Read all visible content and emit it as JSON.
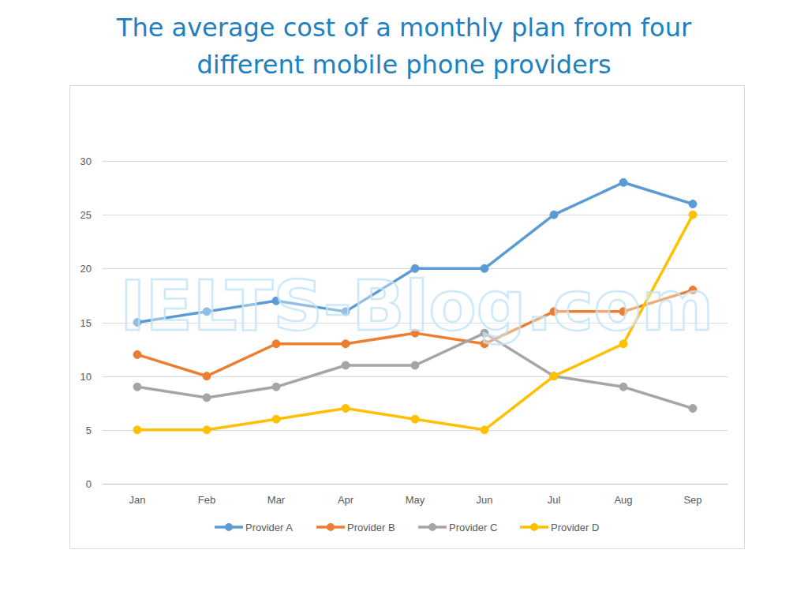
{
  "chart_data": {
    "type": "line",
    "title": "The average cost of a monthly plan from four different mobile phone providers",
    "annotations": [
      "IELTS-Blog.com"
    ],
    "categories": [
      "Jan",
      "Feb",
      "Mar",
      "Apr",
      "May",
      "Jun",
      "Jul",
      "Aug",
      "Sep"
    ],
    "series": [
      {
        "name": "Provider A",
        "color": "#5b9bd5",
        "values": [
          15,
          16,
          17,
          16,
          20,
          20,
          25,
          28,
          26
        ]
      },
      {
        "name": "Provider B",
        "color": "#ed7d31",
        "values": [
          12,
          10,
          13,
          13,
          14,
          13,
          16,
          16,
          18
        ]
      },
      {
        "name": "Provider C",
        "color": "#a5a5a5",
        "values": [
          9,
          8,
          9,
          11,
          11,
          14,
          10,
          9,
          7
        ]
      },
      {
        "name": "Provider D",
        "color": "#ffc000",
        "values": [
          5,
          5,
          6,
          7,
          6,
          5,
          10,
          13,
          25
        ]
      }
    ],
    "ylim": [
      0,
      30
    ],
    "yticks": [
      0,
      5,
      10,
      15,
      20,
      25,
      30
    ],
    "grid": true,
    "legend": "bottom",
    "marker": "circle"
  }
}
